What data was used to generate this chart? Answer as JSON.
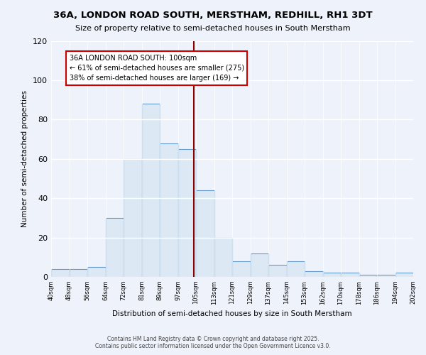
{
  "title": "36A, LONDON ROAD SOUTH, MERSTHAM, REDHILL, RH1 3DT",
  "subtitle": "Size of property relative to semi-detached houses in South Merstham",
  "xlabel": "Distribution of semi-detached houses by size in South Merstham",
  "ylabel": "Number of semi-detached properties",
  "footnote1": "Contains HM Land Registry data © Crown copyright and database right 2025.",
  "footnote2": "Contains public sector information licensed under the Open Government Licence v3.0.",
  "bin_labels": [
    "40sqm",
    "48sqm",
    "56sqm",
    "64sqm",
    "72sqm",
    "81sqm",
    "89sqm",
    "97sqm",
    "105sqm",
    "113sqm",
    "121sqm",
    "129sqm",
    "137sqm",
    "145sqm",
    "153sqm",
    "162sqm",
    "170sqm",
    "178sqm",
    "186sqm",
    "194sqm",
    "202sqm"
  ],
  "values": [
    4,
    4,
    5,
    30,
    60,
    88,
    68,
    65,
    44,
    20,
    8,
    12,
    6,
    8,
    3,
    2,
    2,
    1,
    1,
    2
  ],
  "property_size_idx": 7.375,
  "property_label": "36A LONDON ROAD SOUTH: 100sqm",
  "smaller_pct": 61,
  "smaller_count": 275,
  "larger_pct": 38,
  "larger_count": 169,
  "bar_color": "#dce9f5",
  "bar_edge_color": "#6699cc",
  "vline_color": "#8b0000",
  "annotation_box_edge": "#cc0000",
  "background_color": "#eef2fa",
  "plot_background": "#eef2fa",
  "ylim": [
    0,
    120
  ],
  "yticks": [
    0,
    20,
    40,
    60,
    80,
    100,
    120
  ]
}
